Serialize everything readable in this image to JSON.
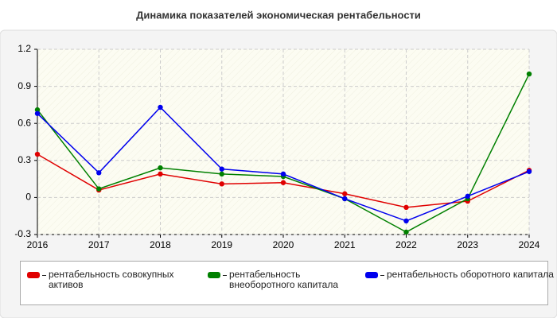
{
  "chart_data": {
    "type": "line",
    "title": "Динамика показателей экономическая рентабельности",
    "categories": [
      "2016",
      "2017",
      "2018",
      "2019",
      "2020",
      "2021",
      "2022",
      "2023",
      "2024"
    ],
    "series": [
      {
        "name": "рентабельность совокупных активов",
        "color": "#e00000",
        "values": [
          0.35,
          0.06,
          0.19,
          0.11,
          0.12,
          0.03,
          -0.08,
          -0.03,
          0.22
        ]
      },
      {
        "name": "рентабельность внеоборотного капитала",
        "color": "#008000",
        "values": [
          0.71,
          0.07,
          0.24,
          0.19,
          0.17,
          -0.01,
          -0.28,
          -0.01,
          1.0
        ]
      },
      {
        "name": "рентабельность оборотного капитала",
        "color": "#0000ee",
        "values": [
          0.68,
          0.2,
          0.73,
          0.23,
          0.19,
          -0.01,
          -0.19,
          0.01,
          0.21
        ]
      }
    ],
    "ylim": [
      -0.3,
      1.2
    ],
    "yticks": [
      -0.3,
      0,
      0.3,
      0.6,
      0.9,
      1.2
    ],
    "grid": true
  }
}
